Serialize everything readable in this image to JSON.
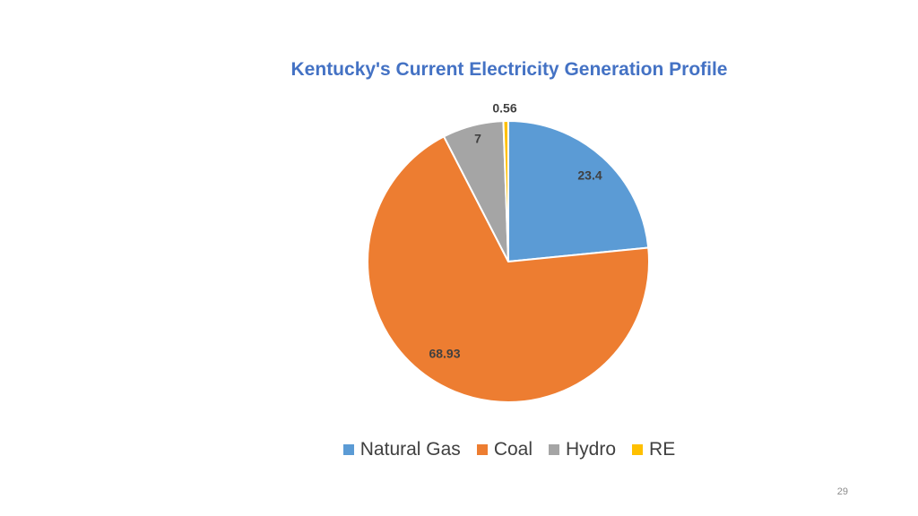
{
  "page": {
    "number": "29"
  },
  "chart_data": {
    "type": "pie",
    "title": "Kentucky's Current Electricity Generation Profile",
    "categories": [
      "Natural Gas",
      "Coal",
      "Hydro",
      "RE"
    ],
    "values": [
      23.4,
      68.93,
      7,
      0.56
    ],
    "labels": [
      "23.4",
      "68.93",
      "7",
      "0.56"
    ],
    "colors": [
      "#5B9BD5",
      "#ED7D31",
      "#A5A5A5",
      "#FFC000"
    ],
    "legend_position": "bottom",
    "start_angle": "12 o'clock",
    "direction": "clockwise"
  }
}
